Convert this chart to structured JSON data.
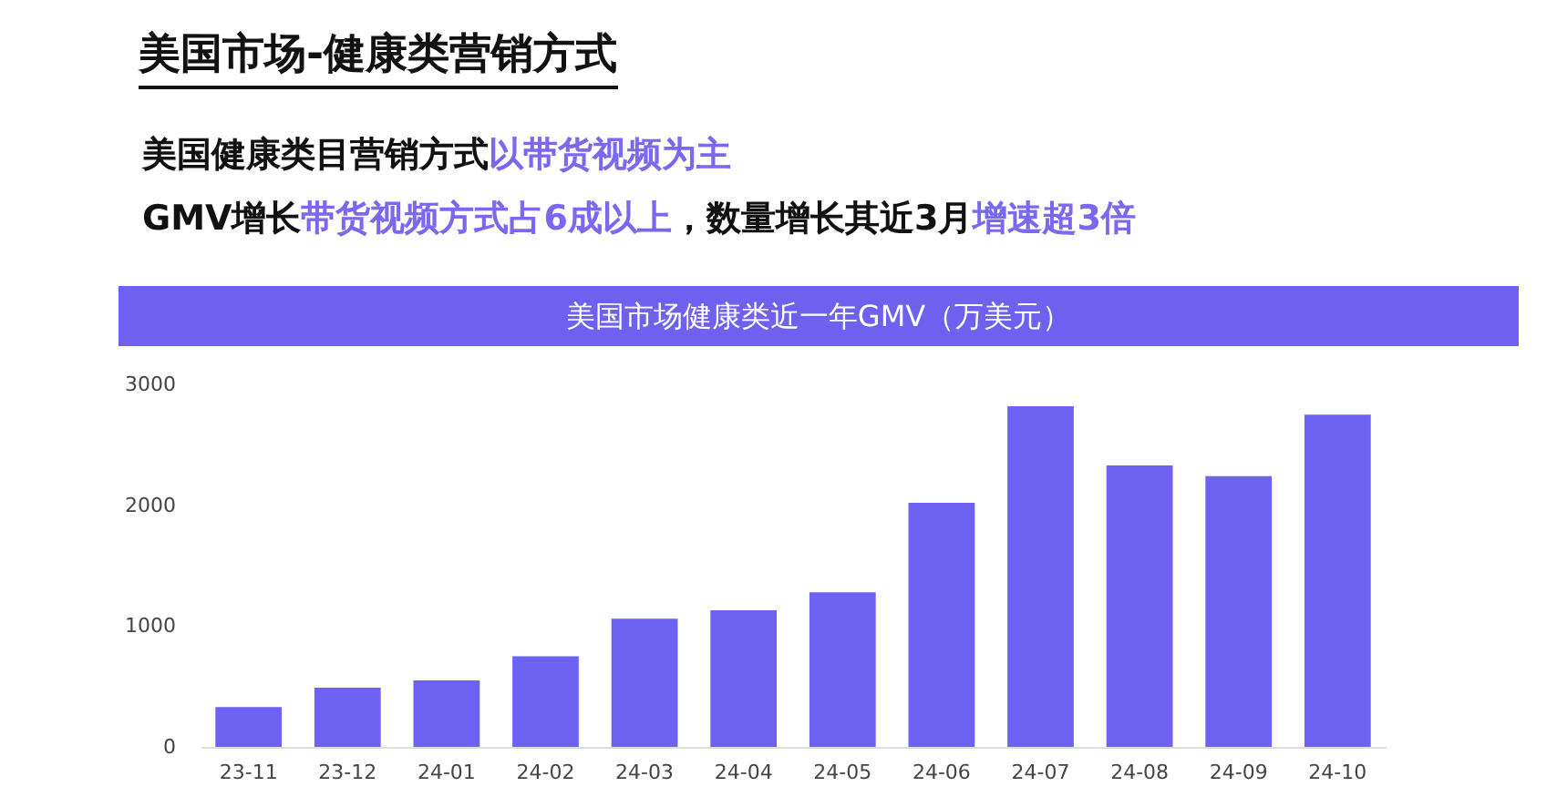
{
  "chart_data": {
    "type": "bar",
    "title": "美国市场-健康类营销方式",
    "subtitle": "美国市场健康类近一年GMV（万美元）",
    "annotations": [
      "美国健康类目营销方式",
      "以带货视频为主",
      "GMV增长",
      "带货视频方式占6成以上",
      "，数量增长其近3月",
      "增速超3倍"
    ],
    "categories": [
      "23-11",
      "23-12",
      "24-01",
      "24-02",
      "24-03",
      "24-04",
      "24-05",
      "24-06",
      "24-07",
      "24-08",
      "24-09",
      "24-10"
    ],
    "values": [
      330,
      490,
      550,
      750,
      1060,
      1130,
      1280,
      2020,
      2820,
      2330,
      2240,
      2750
    ],
    "color": "#6e62f2",
    "ylim": [
      0,
      3000
    ],
    "yticks": [
      0,
      1000,
      2000,
      3000
    ],
    "grid": false
  }
}
